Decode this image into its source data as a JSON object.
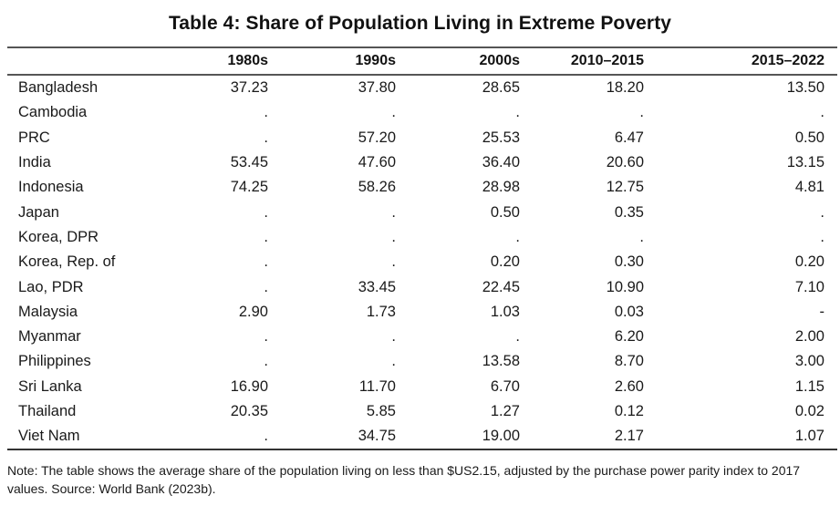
{
  "title": "Table 4: Share of Population Living in Extreme Poverty",
  "table": {
    "headers": [
      "",
      "1980s",
      "1990s",
      "2000s",
      "2010–2015",
      "2015–2022"
    ],
    "rows": [
      {
        "country": "Bangladesh",
        "values": [
          "37.23",
          "37.80",
          "28.65",
          "18.20",
          "13.50"
        ]
      },
      {
        "country": "Cambodia",
        "values": [
          ".",
          ".",
          ".",
          ".",
          "."
        ]
      },
      {
        "country": "PRC",
        "values": [
          ".",
          "57.20",
          "25.53",
          "6.47",
          "0.50"
        ]
      },
      {
        "country": "India",
        "values": [
          "53.45",
          "47.60",
          "36.40",
          "20.60",
          "13.15"
        ]
      },
      {
        "country": "Indonesia",
        "values": [
          "74.25",
          "58.26",
          "28.98",
          "12.75",
          "4.81"
        ]
      },
      {
        "country": "Japan",
        "values": [
          ".",
          ".",
          "0.50",
          "0.35",
          "."
        ]
      },
      {
        "country": "Korea, DPR",
        "values": [
          ".",
          ".",
          ".",
          ".",
          "."
        ]
      },
      {
        "country": "Korea, Rep. of",
        "values": [
          ".",
          ".",
          "0.20",
          "0.30",
          "0.20"
        ]
      },
      {
        "country": "Lao, PDR",
        "values": [
          ".",
          "33.45",
          "22.45",
          "10.90",
          "7.10"
        ]
      },
      {
        "country": "Malaysia",
        "values": [
          "2.90",
          "1.73",
          "1.03",
          "0.03",
          "-"
        ]
      },
      {
        "country": "Myanmar",
        "values": [
          ".",
          ".",
          ".",
          "6.20",
          "2.00"
        ]
      },
      {
        "country": "Philippines",
        "values": [
          ".",
          ".",
          "13.58",
          "8.70",
          "3.00"
        ]
      },
      {
        "country": "Sri Lanka",
        "values": [
          "16.90",
          "11.70",
          "6.70",
          "2.60",
          "1.15"
        ]
      },
      {
        "country": "Thailand",
        "values": [
          "20.35",
          "5.85",
          "1.27",
          "0.12",
          "0.02"
        ]
      },
      {
        "country": "Viet Nam",
        "values": [
          ".",
          "34.75",
          "19.00",
          "2.17",
          "1.07"
        ]
      }
    ]
  },
  "note": "Note: The table shows the average share of the population living on less than $US2.15, adjusted by the purchase power parity index to 2017 values. Source: World Bank (2023b)."
}
